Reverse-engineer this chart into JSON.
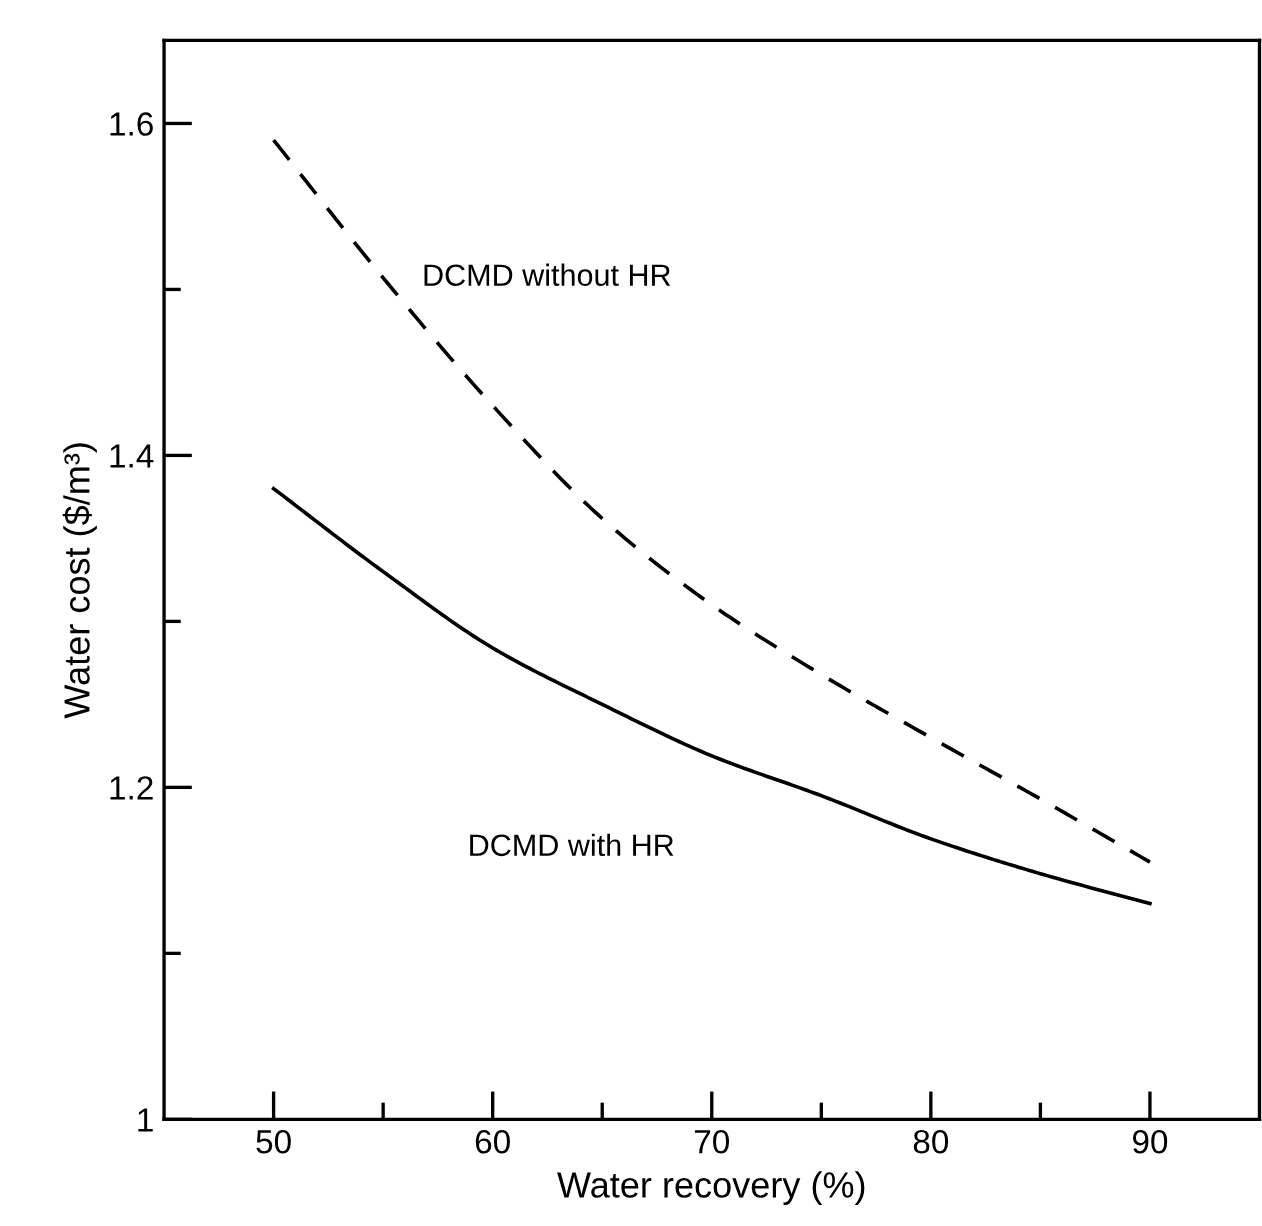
{
  "chart_data": {
    "type": "line",
    "xlabel": "Water recovery (%)",
    "ylabel": "Water cost ($/m³)",
    "x": [
      50,
      55,
      60,
      65,
      70,
      75,
      80,
      85,
      90
    ],
    "series": [
      {
        "name": "DCMD without HR",
        "color": "#000000",
        "line_style": "dashed",
        "values": [
          1.59,
          1.507,
          1.43,
          1.362,
          1.31,
          1.268,
          1.23,
          1.193,
          1.155
        ]
      },
      {
        "name": "DCMD with HR",
        "color": "#000000",
        "line_style": "solid",
        "values": [
          1.38,
          1.33,
          1.284,
          1.25,
          1.219,
          1.195,
          1.169,
          1.148,
          1.13
        ]
      }
    ],
    "xlim": [
      45,
      95
    ],
    "ylim": [
      1,
      1.65
    ],
    "xticks": [
      50,
      {
        "value": 55,
        "label": null
      },
      60,
      {
        "value": 65,
        "label": null
      },
      70,
      {
        "value": 75,
        "label": null
      },
      80,
      {
        "value": 85,
        "label": null
      },
      90
    ],
    "yticks": [
      {
        "value": 1,
        "label": "1"
      },
      {
        "value": 1.1,
        "label": null
      },
      1.2,
      {
        "value": 1.3,
        "label": null
      },
      1.4,
      {
        "value": 1.5,
        "label": null
      },
      1.6
    ],
    "grid": false,
    "legend": false,
    "marker": "none"
  }
}
